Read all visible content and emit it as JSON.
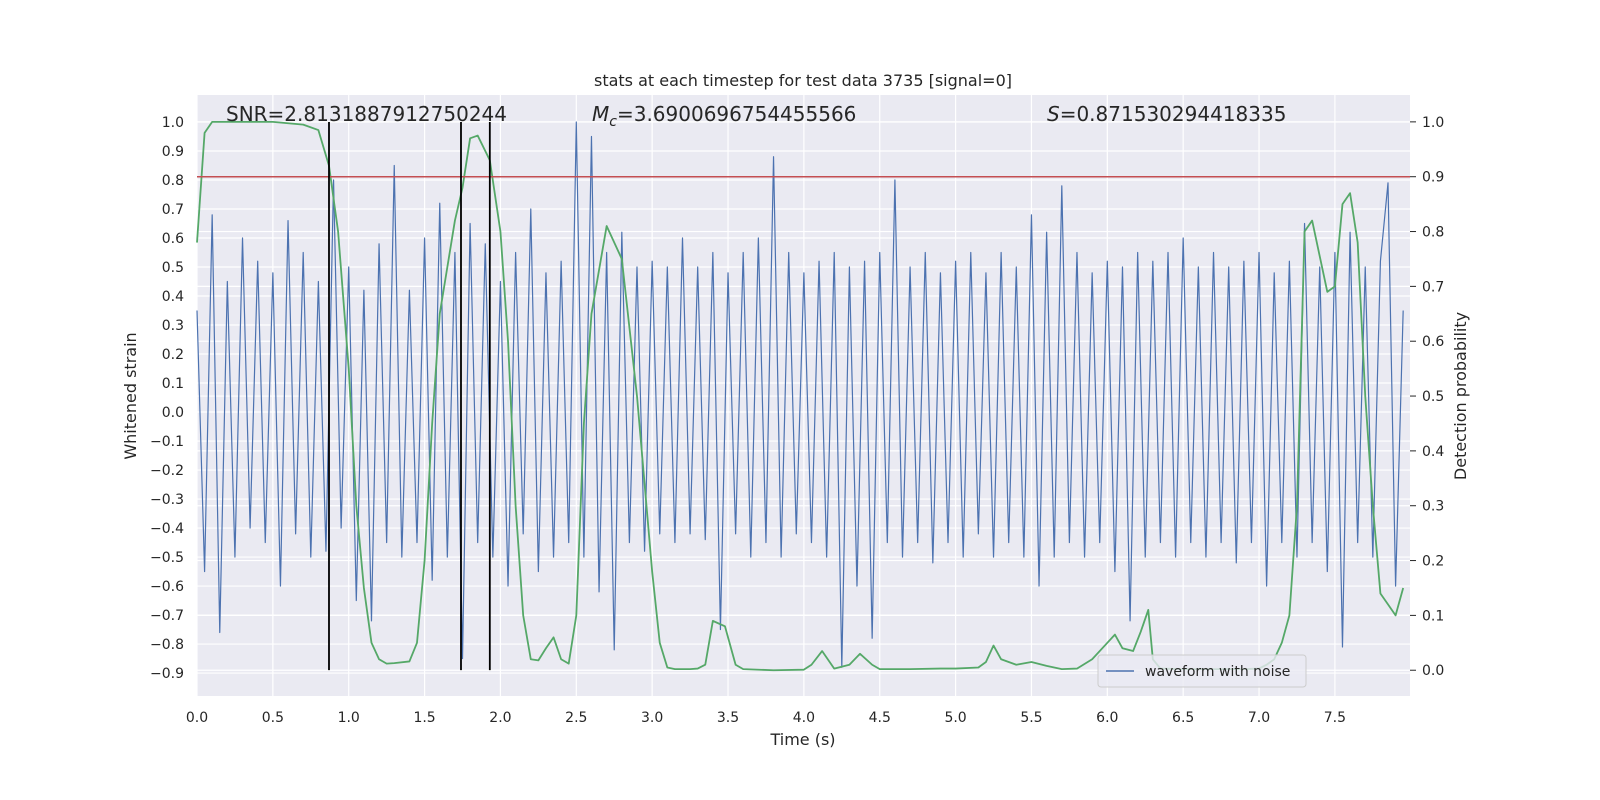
{
  "chart_data": {
    "type": "line",
    "title": "stats at each timestep for test data 3735 [signal=0]",
    "x_label": "Time (s)",
    "y_label": "Whitened strain",
    "y2_label": "Detection probability",
    "xlim": [
      0,
      7.995
    ],
    "ylim": [
      -0.979,
      1.093
    ],
    "y2lim": [
      -0.047,
      1.049
    ],
    "grid": true,
    "legend": "lower right",
    "xticks": [
      {
        "value": 0,
        "label": "0.0"
      },
      {
        "value": 0.5,
        "label": "0.5"
      },
      {
        "value": 1,
        "label": "1.0"
      },
      {
        "value": 1.5,
        "label": "1.5"
      },
      {
        "value": 2,
        "label": "2.0"
      },
      {
        "value": 2.5,
        "label": "2.5"
      },
      {
        "value": 3,
        "label": "3.0"
      },
      {
        "value": 3.5,
        "label": "3.5"
      },
      {
        "value": 4,
        "label": "4.0"
      },
      {
        "value": 4.5,
        "label": "4.5"
      },
      {
        "value": 5,
        "label": "5.0"
      },
      {
        "value": 5.5,
        "label": "5.5"
      },
      {
        "value": 6,
        "label": "6.0"
      },
      {
        "value": 6.5,
        "label": "6.5"
      },
      {
        "value": 7,
        "label": "7.0"
      },
      {
        "value": 7.5,
        "label": "7.5"
      }
    ],
    "yticks": [
      {
        "value": -0.9,
        "label": "−0.9"
      },
      {
        "value": -0.8,
        "label": "−0.8"
      },
      {
        "value": -0.7,
        "label": "−0.7"
      },
      {
        "value": -0.6,
        "label": "−0.6"
      },
      {
        "value": -0.5,
        "label": "−0.5"
      },
      {
        "value": -0.4,
        "label": "−0.4"
      },
      {
        "value": -0.3,
        "label": "−0.3"
      },
      {
        "value": -0.2,
        "label": "−0.2"
      },
      {
        "value": -0.1,
        "label": "−0.1"
      },
      {
        "value": 0,
        "label": "0.0"
      },
      {
        "value": 0.1,
        "label": "0.1"
      },
      {
        "value": 0.2,
        "label": "0.2"
      },
      {
        "value": 0.3,
        "label": "0.3"
      },
      {
        "value": 0.4,
        "label": "0.4"
      },
      {
        "value": 0.5,
        "label": "0.5"
      },
      {
        "value": 0.6,
        "label": "0.6"
      },
      {
        "value": 0.7,
        "label": "0.7"
      },
      {
        "value": 0.8,
        "label": "0.8"
      },
      {
        "value": 0.9,
        "label": "0.9"
      },
      {
        "value": 1,
        "label": "1.0"
      }
    ],
    "y2ticks": [
      {
        "value": 0,
        "label": "0.0"
      },
      {
        "value": 0.1,
        "label": "0.1"
      },
      {
        "value": 0.2,
        "label": "0.2"
      },
      {
        "value": 0.3,
        "label": "0.3"
      },
      {
        "value": 0.4,
        "label": "0.4"
      },
      {
        "value": 0.5,
        "label": "0.5"
      },
      {
        "value": 0.6,
        "label": "0.6"
      },
      {
        "value": 0.7,
        "label": "0.7"
      },
      {
        "value": 0.8,
        "label": "0.8"
      },
      {
        "value": 0.9,
        "label": "0.9"
      },
      {
        "value": 1,
        "label": "1.0"
      }
    ],
    "annotations": [
      {
        "text": "SNR=2.8131887912750244"
      },
      {
        "symbol": "M",
        "subscript": "c",
        "text": "=3.6900696754455566"
      },
      {
        "symbol": "S",
        "text": "=0.871530294418335"
      }
    ],
    "series": [
      {
        "name": "waveform with noise",
        "color": "#4c72b0",
        "axis": "y",
        "x": [
          0,
          0.05,
          0.1,
          0.15,
          0.2,
          0.25,
          0.3,
          0.35,
          0.4,
          0.45,
          0.5,
          0.55,
          0.6,
          0.65,
          0.7,
          0.75,
          0.8,
          0.85,
          0.9,
          0.95,
          1,
          1.05,
          1.1,
          1.15,
          1.2,
          1.25,
          1.3,
          1.35,
          1.4,
          1.45,
          1.5,
          1.55,
          1.6,
          1.65,
          1.7,
          1.75,
          1.8,
          1.85,
          1.9,
          1.95,
          2,
          2.05,
          2.1,
          2.15,
          2.2,
          2.25,
          2.3,
          2.35,
          2.4,
          2.45,
          2.5,
          2.55,
          2.6,
          2.65,
          2.7,
          2.75,
          2.8,
          2.85,
          2.9,
          2.95,
          3,
          3.05,
          3.1,
          3.15,
          3.2,
          3.25,
          3.3,
          3.35,
          3.4,
          3.45,
          3.5,
          3.55,
          3.6,
          3.65,
          3.7,
          3.75,
          3.8,
          3.85,
          3.9,
          3.95,
          4,
          4.05,
          4.1,
          4.15,
          4.2,
          4.25,
          4.3,
          4.35,
          4.4,
          4.45,
          4.5,
          4.55,
          4.6,
          4.65,
          4.7,
          4.75,
          4.8,
          4.85,
          4.9,
          4.95,
          5,
          5.05,
          5.1,
          5.15,
          5.2,
          5.25,
          5.3,
          5.35,
          5.4,
          5.45,
          5.5,
          5.55,
          5.6,
          5.65,
          5.7,
          5.75,
          5.8,
          5.85,
          5.9,
          5.95,
          6,
          6.05,
          6.1,
          6.15,
          6.2,
          6.25,
          6.3,
          6.35,
          6.4,
          6.45,
          6.5,
          6.55,
          6.6,
          6.65,
          6.7,
          6.75,
          6.8,
          6.85,
          6.9,
          6.95,
          7,
          7.05,
          7.1,
          7.15,
          7.2,
          7.25,
          7.3,
          7.35,
          7.4,
          7.45,
          7.5,
          7.55,
          7.6,
          7.65,
          7.7,
          7.75,
          7.8,
          7.85,
          7.9,
          7.95
        ],
        "values": [
          0.35,
          -0.55,
          0.68,
          -0.76,
          0.45,
          -0.5,
          0.6,
          -0.4,
          0.52,
          -0.45,
          0.48,
          -0.6,
          0.66,
          -0.42,
          0.55,
          -0.5,
          0.45,
          -0.48,
          0.8,
          -0.4,
          0.5,
          -0.65,
          0.42,
          -0.72,
          0.58,
          -0.45,
          0.85,
          -0.5,
          0.42,
          -0.45,
          0.6,
          -0.58,
          0.72,
          -0.5,
          0.55,
          -0.85,
          0.65,
          -0.45,
          0.58,
          -0.5,
          0.45,
          -0.6,
          0.55,
          -0.42,
          0.7,
          -0.55,
          0.48,
          -0.5,
          0.52,
          -0.45,
          1.0,
          -0.5,
          0.95,
          -0.62,
          0.55,
          -0.82,
          0.62,
          -0.45,
          0.5,
          -0.48,
          0.52,
          -0.42,
          0.5,
          -0.45,
          0.6,
          -0.42,
          0.5,
          -0.44,
          0.55,
          -0.75,
          0.48,
          -0.42,
          0.55,
          -0.5,
          0.6,
          -0.45,
          0.88,
          -0.5,
          0.55,
          -0.42,
          0.48,
          -0.45,
          0.52,
          -0.5,
          0.55,
          -0.88,
          0.5,
          -0.6,
          0.52,
          -0.78,
          0.55,
          -0.45,
          0.8,
          -0.5,
          0.5,
          -0.45,
          0.55,
          -0.52,
          0.48,
          -0.45,
          0.52,
          -0.5,
          0.55,
          -0.42,
          0.48,
          -0.5,
          0.55,
          -0.45,
          0.5,
          -0.5,
          0.68,
          -0.6,
          0.62,
          -0.5,
          0.78,
          -0.45,
          0.55,
          -0.5,
          0.48,
          -0.45,
          0.52,
          -0.55,
          0.5,
          -0.72,
          0.55,
          -0.5,
          0.52,
          -0.45,
          0.55,
          -0.5,
          0.6,
          -0.45,
          0.5,
          -0.5,
          0.55,
          -0.45,
          0.5,
          -0.52,
          0.52,
          -0.45,
          0.55,
          -0.6,
          0.48,
          -0.45,
          0.52,
          -0.5,
          0.65,
          -0.45,
          0.5,
          -0.55,
          0.55,
          -0.81,
          0.62,
          -0.45,
          0.5,
          -0.5,
          0.52,
          0.79,
          -0.6,
          0.35
        ]
      },
      {
        "name": "detection probability",
        "color": "#55a868",
        "axis": "y2",
        "in_legend": false,
        "x": [
          0,
          0.05,
          0.1,
          0.2,
          0.5,
          0.7,
          0.8,
          0.87,
          0.93,
          1,
          1.05,
          1.1,
          1.15,
          1.2,
          1.25,
          1.3,
          1.4,
          1.45,
          1.5,
          1.55,
          1.6,
          1.7,
          1.75,
          1.8,
          1.85,
          1.93,
          2,
          2.05,
          2.1,
          2.15,
          2.2,
          2.25,
          2.3,
          2.35,
          2.4,
          2.45,
          2.5,
          2.55,
          2.6,
          2.7,
          2.8,
          2.9,
          3,
          3.05,
          3.1,
          3.15,
          3.25,
          3.3,
          3.35,
          3.4,
          3.48,
          3.55,
          3.6,
          3.8,
          4,
          4.05,
          4.12,
          4.2,
          4.3,
          4.37,
          4.45,
          4.5,
          4.7,
          4.9,
          5,
          5.15,
          5.2,
          5.25,
          5.3,
          5.4,
          5.5,
          5.6,
          5.7,
          5.8,
          5.9,
          6,
          6.05,
          6.1,
          6.17,
          6.22,
          6.27,
          6.3,
          6.35,
          6.5,
          6.7,
          6.9,
          7,
          7.05,
          7.1,
          7.15,
          7.2,
          7.25,
          7.3,
          7.35,
          7.45,
          7.5,
          7.55,
          7.6,
          7.65,
          7.7,
          7.75,
          7.8,
          7.85,
          7.9,
          7.95
        ],
        "values": [
          0.78,
          0.98,
          1.0,
          1.0,
          1.0,
          0.995,
          0.985,
          0.92,
          0.8,
          0.55,
          0.3,
          0.15,
          0.05,
          0.02,
          0.012,
          0.013,
          0.016,
          0.05,
          0.2,
          0.45,
          0.65,
          0.82,
          0.88,
          0.97,
          0.975,
          0.93,
          0.8,
          0.6,
          0.3,
          0.1,
          0.02,
          0.018,
          0.04,
          0.06,
          0.02,
          0.012,
          0.1,
          0.45,
          0.65,
          0.81,
          0.75,
          0.5,
          0.18,
          0.05,
          0.005,
          0.002,
          0.002,
          0.003,
          0.01,
          0.09,
          0.08,
          0.01,
          0.002,
          0.0,
          0.001,
          0.01,
          0.035,
          0.003,
          0.01,
          0.03,
          0.01,
          0.002,
          0.002,
          0.003,
          0.003,
          0.005,
          0.015,
          0.045,
          0.02,
          0.01,
          0.015,
          0.008,
          0.002,
          0.003,
          0.02,
          0.05,
          0.065,
          0.04,
          0.035,
          0.07,
          0.11,
          0.02,
          0.003,
          0.002,
          0.002,
          0.002,
          0.003,
          0.01,
          0.02,
          0.05,
          0.1,
          0.3,
          0.8,
          0.82,
          0.69,
          0.7,
          0.85,
          0.87,
          0.78,
          0.5,
          0.3,
          0.14,
          0.12,
          0.1,
          0.15
        ]
      }
    ],
    "hlines": [
      {
        "y": 0.9,
        "axis": "y2",
        "color": "#c44e52"
      }
    ],
    "vlines": {
      "x": [
        0.87,
        1.74,
        1.93
      ],
      "ymin": -0.89,
      "ymax": 1.0,
      "color": "#000000"
    }
  }
}
